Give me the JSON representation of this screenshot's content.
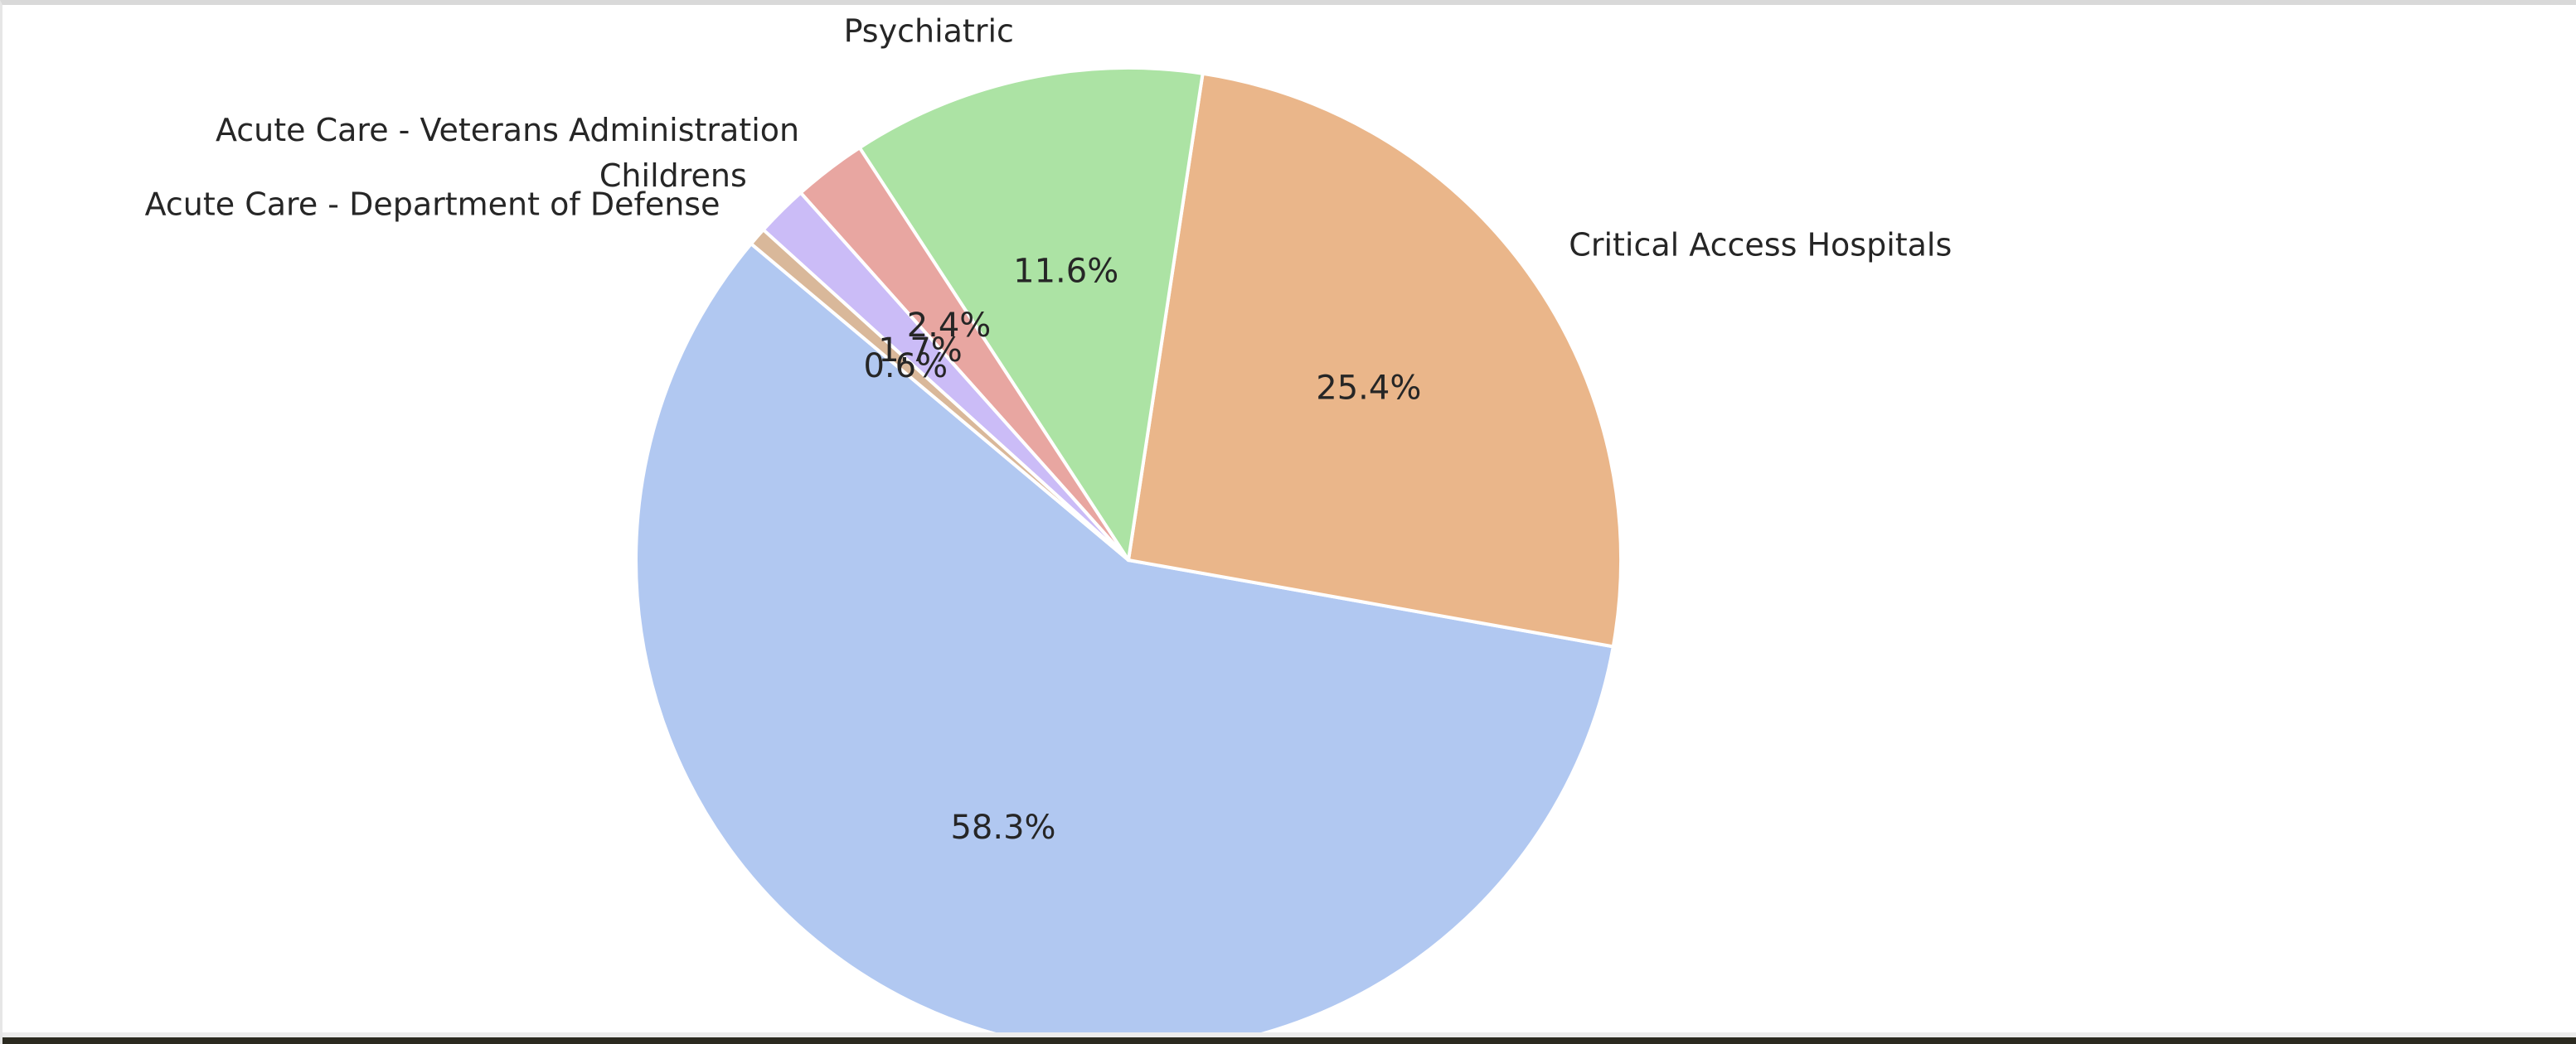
{
  "chart_data": {
    "type": "pie",
    "title": "",
    "slices": [
      {
        "label": "",
        "value": 58.3,
        "pct_label": "58.3%",
        "color": "#b1c8f1"
      },
      {
        "label": "Critical Access Hospitals",
        "value": 25.4,
        "pct_label": "25.4%",
        "color": "#eab68a"
      },
      {
        "label": "Psychiatric",
        "value": 11.6,
        "pct_label": "11.6%",
        "color": "#ace3a4"
      },
      {
        "label": "Acute Care - Veterans Administration",
        "value": 2.4,
        "pct_label": "2.4%",
        "color": "#e8a6a1"
      },
      {
        "label": "Childrens",
        "value": 1.7,
        "pct_label": "1.7%",
        "color": "#cbbcf7"
      },
      {
        "label": "Acute Care - Department of Defense",
        "value": 0.6,
        "pct_label": "0.6%",
        "color": "#d9b89a"
      }
    ],
    "start_angle_deg": 140,
    "direction": "counterclockwise",
    "legend": "none"
  }
}
